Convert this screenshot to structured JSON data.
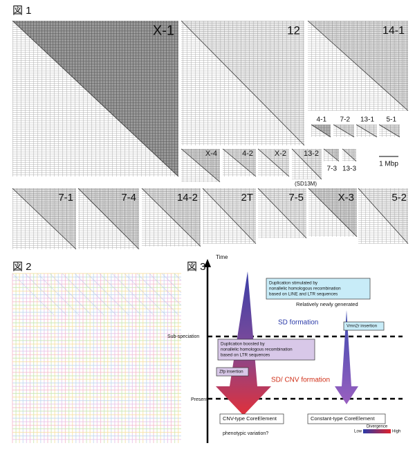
{
  "figure1": {
    "title": "図 1",
    "panels": [
      {
        "label": "X-1"
      },
      {
        "label": "12"
      },
      {
        "label": "14-1"
      },
      {
        "label": "4-1"
      },
      {
        "label": "7-2"
      },
      {
        "label": "13-1"
      },
      {
        "label": "5-1"
      },
      {
        "label": "X-4"
      },
      {
        "label": "4-2"
      },
      {
        "label": "X-2"
      },
      {
        "label": "13-2"
      },
      {
        "label": "7-3"
      },
      {
        "label": "13-3"
      },
      {
        "label": "7-1"
      },
      {
        "label": "7-4"
      },
      {
        "label": "14-2"
      },
      {
        "label": "2T"
      },
      {
        "label": "7-5"
      },
      {
        "label": "X-3"
      },
      {
        "label": "5-2"
      }
    ],
    "scale_bar": "1 Mbp",
    "note": "(SD13M)"
  },
  "figure2": {
    "title": "図 2"
  },
  "figure3": {
    "title": "図 3",
    "axis_label": "Time",
    "milestones": [
      "Sub-speciation",
      "Present"
    ],
    "boxes": [
      {
        "lines": [
          "Duplication stimulated by",
          "nonallelic homologous recombination",
          "based on LINE and LTR sequences"
        ]
      },
      {
        "lines": [
          "Vmn2r insertion"
        ]
      },
      {
        "lines": [
          "Duplication boosted by",
          "nonallelic homologous recombination",
          "based on LTR sequences"
        ]
      },
      {
        "lines": [
          "Zfp insertion"
        ]
      },
      {
        "lines": [
          "CNV-type CoreElement"
        ]
      },
      {
        "lines": [
          "Constant-type CoreElement"
        ]
      }
    ],
    "notes": [
      "Relatively newly generated",
      "SD formation",
      "SD/ CNV formation",
      "phenotypic variation?"
    ],
    "legend": {
      "title": "Divergence",
      "low": "Low",
      "high": "High"
    }
  }
}
